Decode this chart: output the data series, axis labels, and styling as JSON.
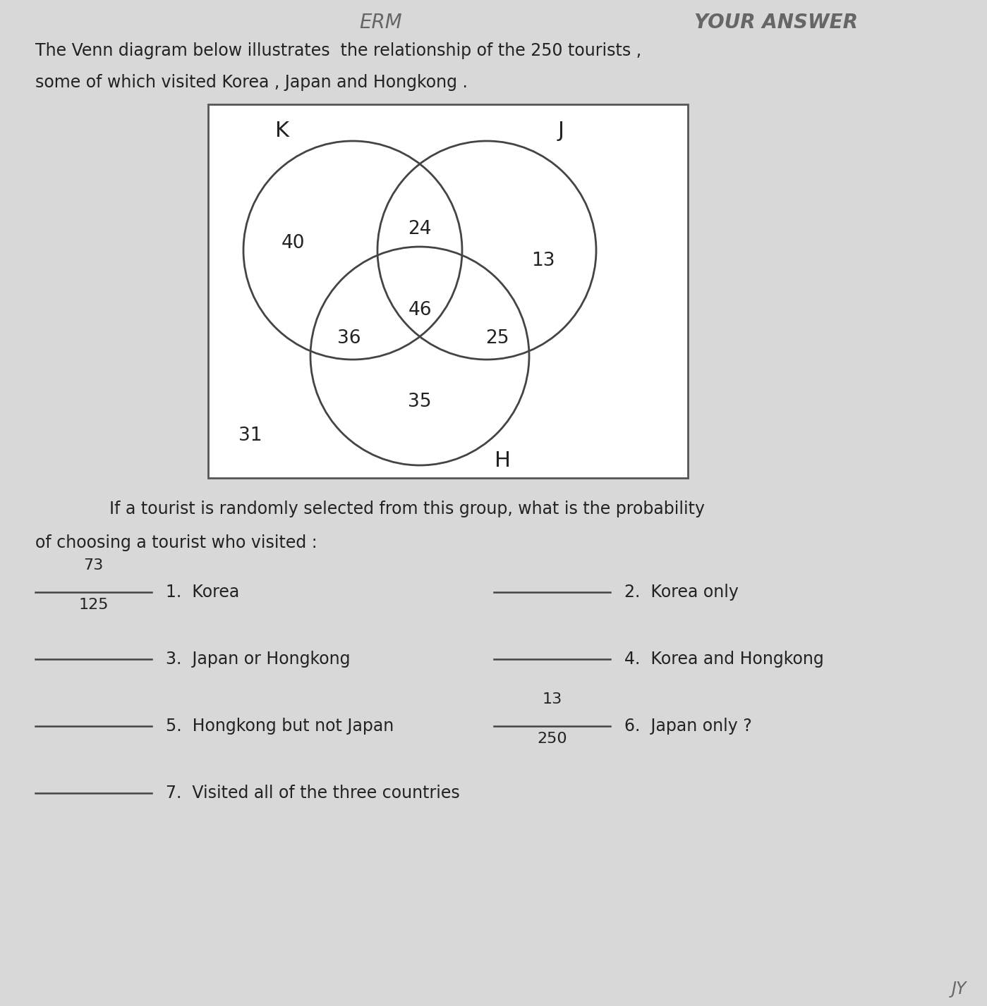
{
  "title_line1": "The Venn diagram below illustrates  the relationship of the 250 tourists ,",
  "title_line2": "some of which visited Korea , Japan and Hongkong .",
  "header_left": "ERM",
  "header_right": "YOUR ANSWER",
  "label_K": "K",
  "label_J": "J",
  "label_H": "H",
  "val_K_only": "40",
  "val_KJ_only": "24",
  "val_J_only": "13",
  "val_KH_only": "36",
  "val_center": "46",
  "val_JH_only": "25",
  "val_H_only": "35",
  "val_outside": "31",
  "circle_color": "#444444",
  "text_color": "#222222",
  "bg_color": "#d8d8d8",
  "question_text": "If a tourist is randomly selected from this group, what is the probability",
  "question_text2": "of choosing a tourist who visited :",
  "items": [
    {
      "num": "1.",
      "label": "Korea",
      "answer_num": "73",
      "answer_den": "125",
      "side": "left"
    },
    {
      "num": "2.",
      "label": "Korea only",
      "answer_num": "",
      "answer_den": "",
      "side": "right"
    },
    {
      "num": "3.",
      "label": "Japan or Hongkong",
      "answer_num": "",
      "answer_den": "",
      "side": "left"
    },
    {
      "num": "4.",
      "label": "Korea and Hongkong",
      "answer_num": "",
      "answer_den": "",
      "side": "right"
    },
    {
      "num": "5.",
      "label": "Hongkong but not Japan",
      "answer_num": "",
      "answer_den": "",
      "side": "left"
    },
    {
      "num": "6.",
      "label": "Japan only ?",
      "answer_num": "13",
      "answer_den": "250",
      "side": "right"
    },
    {
      "num": "7.",
      "label": "Visited all of the three countries",
      "answer_num": "",
      "answer_den": "",
      "side": "left"
    }
  ],
  "footer": "JY"
}
